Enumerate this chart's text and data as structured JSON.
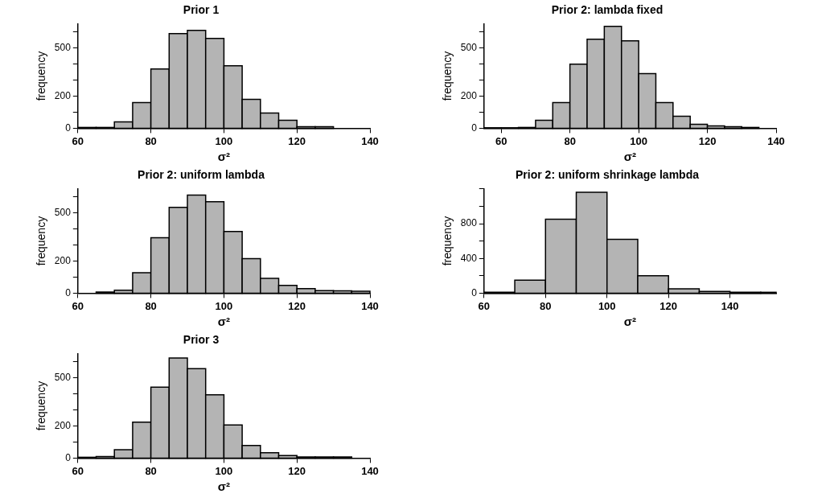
{
  "chart_data": [
    {
      "type": "histogram",
      "title": "Prior 1",
      "xlabel": "σ²",
      "ylabel": "frequency",
      "color": "#b4b4b4",
      "bins": [
        60,
        65,
        70,
        75,
        80,
        85,
        90,
        95,
        100,
        105,
        110,
        115,
        120,
        125,
        130
      ],
      "values": [
        5,
        5,
        40,
        160,
        370,
        590,
        610,
        560,
        390,
        180,
        95,
        50,
        10,
        10
      ],
      "xlim": [
        60,
        140
      ],
      "xticks": [
        60,
        80,
        100,
        120,
        140
      ],
      "ylim": [
        0,
        650
      ],
      "yticks": [
        0,
        {
          "value": 100,
          "label": null
        },
        200,
        {
          "value": 300,
          "label": null
        },
        {
          "value": 400,
          "label": null
        },
        500,
        {
          "value": 600,
          "label": null
        }
      ]
    },
    {
      "type": "histogram",
      "title": "Prior 2: lambda fixed",
      "xlabel": "σ²",
      "ylabel": "frequency",
      "color": "#b4b4b4",
      "bins": [
        55,
        60,
        65,
        70,
        75,
        80,
        85,
        90,
        95,
        100,
        105,
        110,
        115,
        120,
        125,
        130,
        135
      ],
      "values": [
        3,
        3,
        5,
        50,
        160,
        400,
        555,
        635,
        545,
        340,
        160,
        75,
        25,
        15,
        10,
        5
      ],
      "xlim": [
        55,
        140
      ],
      "xticks": [
        60,
        80,
        100,
        120,
        140
      ],
      "ylim": [
        0,
        650
      ],
      "yticks": [
        0,
        {
          "value": 100,
          "label": null
        },
        200,
        {
          "value": 300,
          "label": null
        },
        {
          "value": 400,
          "label": null
        },
        500,
        {
          "value": 600,
          "label": null
        }
      ]
    },
    {
      "type": "histogram",
      "title": "Prior 2: uniform lambda",
      "xlabel": "σ²",
      "ylabel": "frequency",
      "color": "#b4b4b4",
      "bins": [
        65,
        70,
        75,
        80,
        85,
        90,
        95,
        100,
        105,
        110,
        115,
        120,
        125,
        130,
        135,
        140
      ],
      "values": [
        7,
        18,
        127,
        346,
        535,
        612,
        570,
        385,
        215,
        92,
        48,
        28,
        16,
        14,
        12
      ],
      "xlim": [
        60,
        140
      ],
      "xticks": [
        60,
        80,
        100,
        120,
        140
      ],
      "ylim": [
        0,
        650
      ],
      "yticks": [
        0,
        {
          "value": 100,
          "label": null
        },
        200,
        {
          "value": 300,
          "label": null
        },
        {
          "value": 400,
          "label": null
        },
        500,
        {
          "value": 600,
          "label": null
        }
      ]
    },
    {
      "type": "histogram",
      "title": "Prior 2: uniform shrinkage lambda",
      "xlabel": "σ²",
      "ylabel": "frequency",
      "color": "#b4b4b4",
      "bins": [
        60,
        70,
        80,
        90,
        100,
        110,
        120,
        130,
        140,
        150,
        155
      ],
      "values": [
        10,
        150,
        850,
        1160,
        620,
        200,
        50,
        20,
        10,
        10
      ],
      "xlim": [
        60,
        155
      ],
      "xticks": [
        60,
        80,
        100,
        120,
        140
      ],
      "ylim": [
        0,
        1200
      ],
      "yticks": [
        0,
        {
          "value": 200,
          "label": null
        },
        400,
        {
          "value": 600,
          "label": null
        },
        800,
        {
          "value": 1000,
          "label": null
        },
        {
          "value": 1200,
          "label": null
        }
      ]
    },
    {
      "type": "histogram",
      "title": "Prior 3",
      "xlabel": "σ²",
      "ylabel": "frequency",
      "color": "#b4b4b4",
      "bins": [
        60,
        65,
        70,
        75,
        80,
        85,
        90,
        95,
        100,
        105,
        110,
        115,
        120,
        125,
        130,
        135
      ],
      "values": [
        5,
        9,
        52,
        224,
        442,
        624,
        558,
        395,
        207,
        78,
        33,
        16,
        7,
        7,
        7
      ],
      "xlim": [
        60,
        140
      ],
      "xticks": [
        60,
        80,
        100,
        120,
        140
      ],
      "ylim": [
        0,
        650
      ],
      "yticks": [
        0,
        {
          "value": 100,
          "label": null
        },
        200,
        {
          "value": 300,
          "label": null
        },
        {
          "value": 400,
          "label": null
        },
        500,
        {
          "value": 600,
          "label": null
        }
      ]
    }
  ]
}
